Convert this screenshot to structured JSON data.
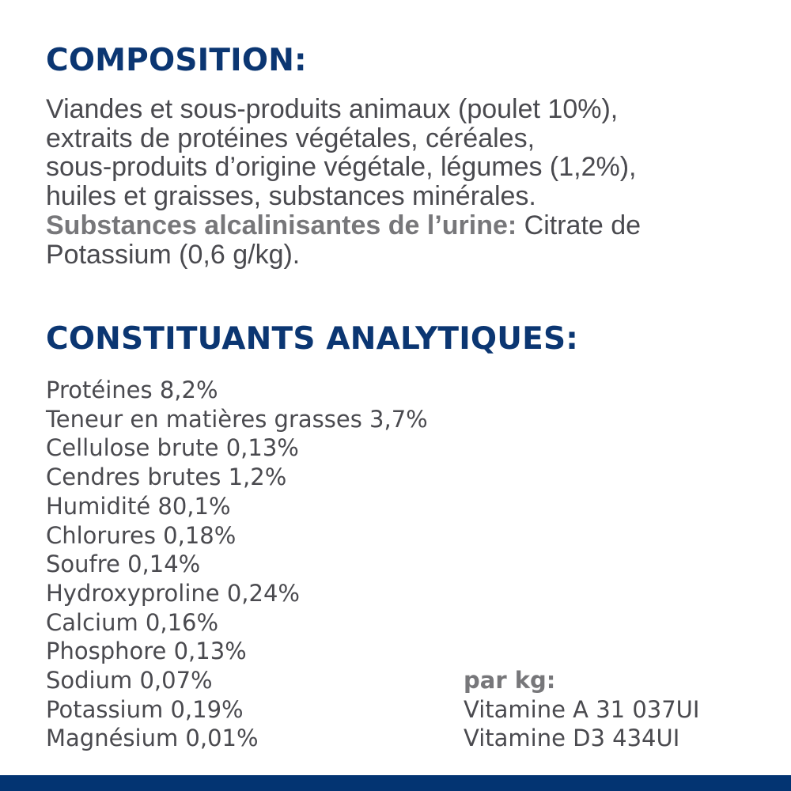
{
  "composition": {
    "title": "COMPOSITION:",
    "lines": [
      "Viandes et sous-produits animaux (poulet 10%),",
      "extraits de protéines végétales, céréales,",
      "sous-produits d’origine végétale, légumes (1,2%),",
      "huiles et graisses, substances minérales."
    ],
    "additive_label": "Substances alcalinisantes de l’urine:",
    "additive_value_1": " Citrate de",
    "additive_value_2": "Potassium (0,6 g/kg)."
  },
  "analytical": {
    "title": "CONSTITUANTS ANALYTIQUES:",
    "items": [
      "Protéines 8,2%",
      "Teneur en matières grasses 3,7%",
      "Cellulose brute 0,13%",
      "Cendres brutes 1,2%",
      "Humidité 80,1%",
      "Chlorures 0,18%",
      "Soufre 0,14%",
      "Hydroxyproline 0,24%",
      "Calcium 0,16%",
      "Phosphore 0,13%",
      "Sodium 0,07%",
      "Potassium 0,19%",
      "Magnésium 0,01%"
    ]
  },
  "vitamins": {
    "label": "par kg:",
    "items": [
      "Vitamine A 31 037UI",
      "Vitamine D3 434UI"
    ]
  },
  "colors": {
    "heading": "#0b3672",
    "text": "#4a4a4f",
    "bold_gray": "#77777a",
    "footer_bar": "#033472"
  }
}
